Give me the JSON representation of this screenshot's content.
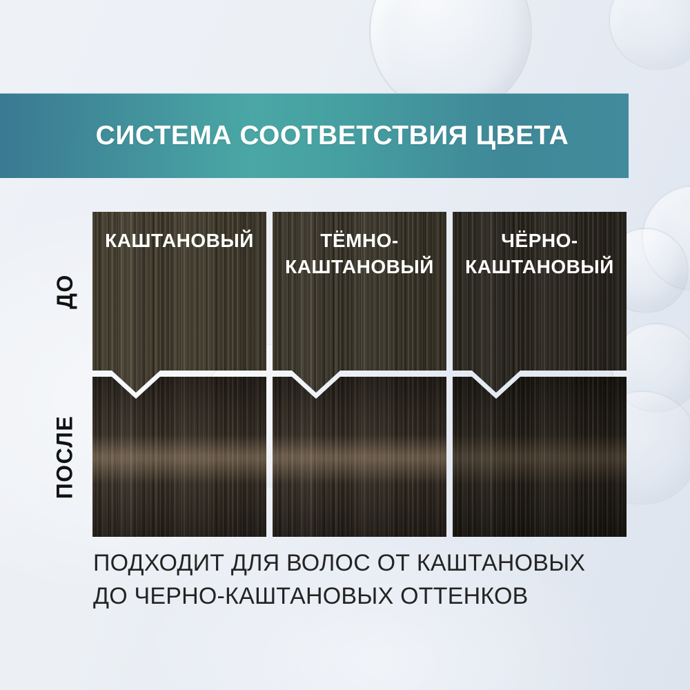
{
  "banner": {
    "title": "СИСТЕМА СООТВЕТСТВИЯ ЦВЕТА"
  },
  "rows": {
    "before_label": "ДО",
    "after_label": "ПОСЛЕ"
  },
  "columns": [
    {
      "label": "КАШТАНОВЫЙ"
    },
    {
      "label": "ТЁМНО-\nКАШТАНОВЫЙ"
    },
    {
      "label": "ЧЁРНО-\nКАШТАНОВЫЙ"
    }
  ],
  "footer": {
    "text": "ПОДХОДИТ ДЛЯ ВОЛОС ОТ КАШТАНОВЫХ\nДО ЧЕРНО-КАШТАНОВЫХ ОТТЕНКОВ"
  },
  "colors": {
    "banner_teal_left": "#3a7992",
    "banner_teal_mid": "#4aa7a5",
    "banner_teal_right": "#418b9c",
    "banner_text": "#ffffff",
    "swatch_label_text": "#ffffff",
    "row_label_text": "#121212",
    "footer_text": "#242424",
    "background_light": "#eef1f6",
    "background_shade": "#dde4ee",
    "hair_before_chestnut": "#453f30",
    "hair_before_dark_chestnut": "#3d382c",
    "hair_before_black_chestnut": "#2b2720",
    "hair_after_chestnut": "#372f26",
    "hair_after_dark_chestnut": "#342c24",
    "hair_after_black_chestnut": "#231e17",
    "hair_shine": "#e3c29b"
  }
}
